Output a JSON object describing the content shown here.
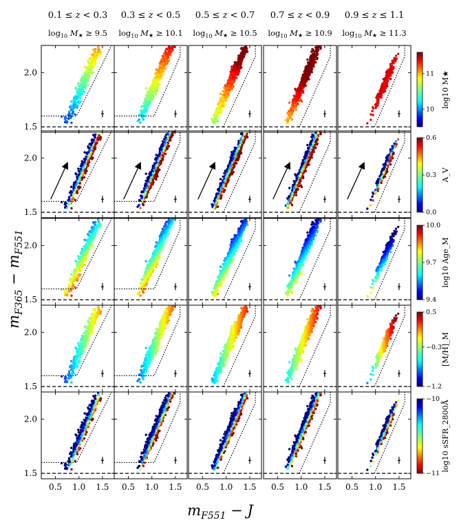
{
  "chart_data": {
    "type": "scatter",
    "description_free": true,
    "xlabel": "m_F551 − J",
    "ylabel": "m_F365 − m_F551",
    "xlim": [
      0.2,
      1.75
    ],
    "ylim": [
      1.45,
      2.25
    ],
    "x_ticks": [
      "0.5",
      "1.0",
      "1.5"
    ],
    "y_ticks": [
      "1.5",
      "2.0"
    ],
    "x_tick_values": [
      0.5,
      1.0,
      1.5
    ],
    "y_tick_values": [
      1.5,
      2.0
    ],
    "columns": [
      {
        "title": "0.1 ≤ z < 0.3",
        "subtitle": "log10 M★ ≥ 9.5"
      },
      {
        "title": "0.3 ≤ z < 0.5",
        "subtitle": "log10 M★ ≥ 10.1"
      },
      {
        "title": "0.5 ≤ z < 0.7",
        "subtitle": "log10 M★ ≥ 10.5"
      },
      {
        "title": "0.7 ≤ z < 0.9",
        "subtitle": "log10 M★ ≥ 10.9"
      },
      {
        "title": "0.9 ≤ z ≤ 1.1",
        "subtitle": "log10 M★ ≥ 11.3"
      }
    ],
    "column_title_parts": [
      {
        "zlo": "0.1",
        "op1": "≤",
        "op2": "<",
        "zhi": "0.3",
        "mass": "9.5"
      },
      {
        "zlo": "0.3",
        "op1": "≤",
        "op2": "<",
        "zhi": "0.5",
        "mass": "10.1"
      },
      {
        "zlo": "0.5",
        "op1": "≤",
        "op2": "<",
        "zhi": "0.7",
        "mass": "10.5"
      },
      {
        "zlo": "0.7",
        "op1": "≤",
        "op2": "<",
        "zhi": "0.9",
        "mass": "10.9"
      },
      {
        "zlo": "0.9",
        "op1": "≤",
        "op2": "≤",
        "zhi": "1.1",
        "mass": "11.3"
      }
    ],
    "rows": [
      {
        "colorbar_label": "log10 M★",
        "ticks": [
          "10",
          "11"
        ],
        "tick_values": [
          10,
          11
        ],
        "range": [
          9.5,
          11.6
        ],
        "colormap": "jet"
      },
      {
        "colorbar_label": "A_V",
        "ticks": [
          "0.0",
          "0.3",
          "0.6"
        ],
        "tick_values": [
          0.0,
          0.3,
          0.6
        ],
        "range": [
          0.0,
          0.6
        ],
        "colormap": "jet"
      },
      {
        "colorbar_label": "log10 Age_M",
        "ticks": [
          "9.4",
          "9.7",
          "10.0"
        ],
        "tick_values": [
          9.4,
          9.7,
          10.0
        ],
        "range": [
          9.4,
          10.0
        ],
        "colormap": "jet"
      },
      {
        "colorbar_label": "[M/H]_M",
        "ticks": [
          "−1.2",
          "−0.3",
          "0.5"
        ],
        "tick_values": [
          -1.2,
          -0.3,
          0.5
        ],
        "range": [
          -1.2,
          0.5
        ],
        "colormap": "jet"
      },
      {
        "colorbar_label": "log10 sSFR_2800Å",
        "ticks": [
          "−11",
          "−10"
        ],
        "tick_values": [
          -11,
          -10
        ],
        "range": [
          -11,
          -10
        ],
        "colormap": "jet_r"
      }
    ],
    "reference_lines": {
      "dashed_horizontal_y": 1.5,
      "dotted_selection_boundary": "dotted polygon on lower-right side of the galaxy distribution"
    },
    "annotations": "Reddening vector arrow drawn in the A_V row; error bar cross in lower-right of each panel",
    "legend": "none",
    "grid": false
  },
  "labels": {
    "xlabel_main": "m",
    "xlabel_sub": "F551",
    "xlabel_tail": " − J",
    "ylabel_main": "m",
    "ylabel_sub1": "F365",
    "ylabel_mid": " − m",
    "ylabel_sub2": "F551"
  }
}
